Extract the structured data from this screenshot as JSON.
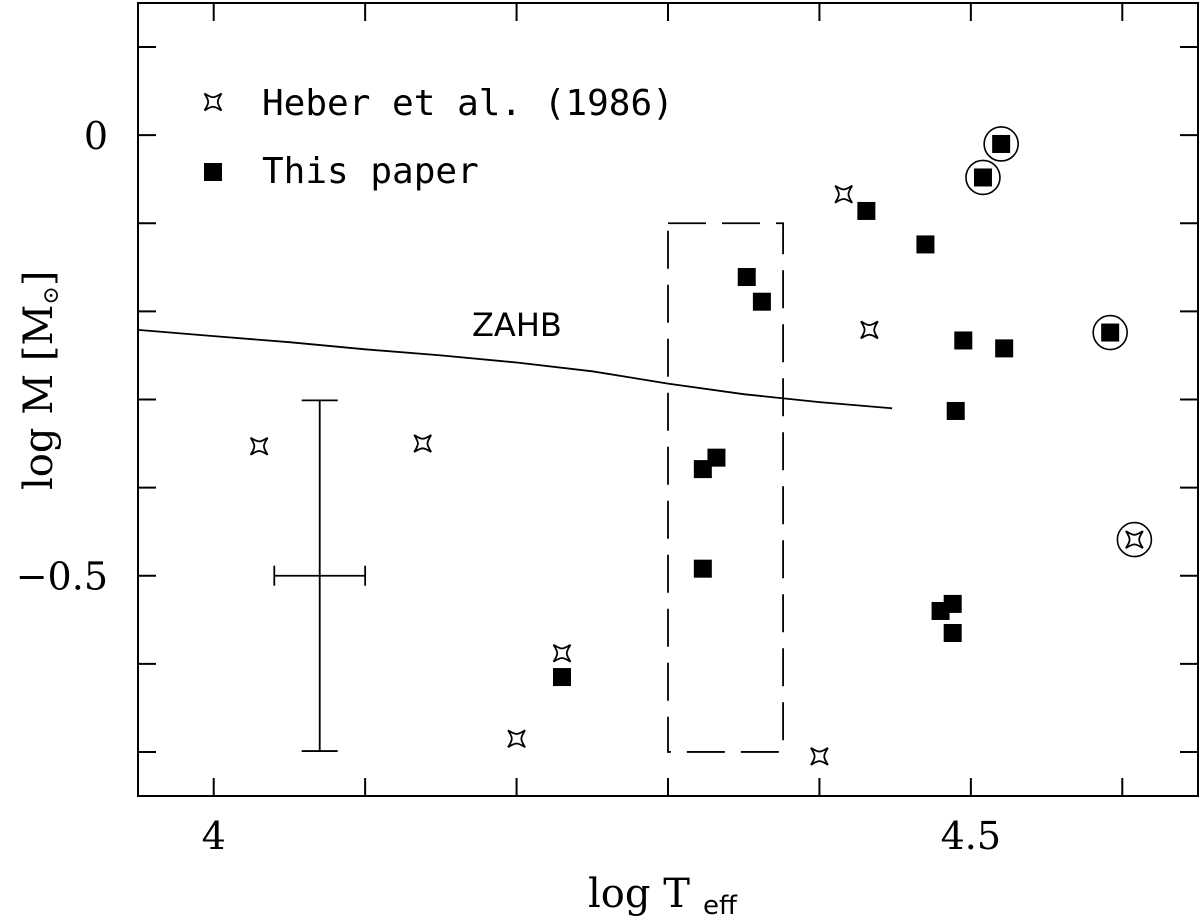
{
  "chart_data": {
    "type": "scatter",
    "xlabel_main": "log T",
    "xlabel_sub": "eff",
    "ylabel": "log M [M",
    "ylabel_sym": "⊙",
    "ylabel_close": "]",
    "xlim": [
      3.95,
      4.65
    ],
    "ylim": [
      -0.75,
      0.15
    ],
    "x_tick_labels": [
      {
        "value": 4.0,
        "label": "4"
      },
      {
        "value": 4.5,
        "label": "4.5"
      }
    ],
    "y_tick_labels": [
      {
        "value": 0.0,
        "label": "0"
      },
      {
        "value": -0.5,
        "label": "−0.5"
      }
    ],
    "x_minor_ticks": [
      4.0,
      4.1,
      4.2,
      4.3,
      4.4,
      4.5,
      4.6
    ],
    "y_minor_ticks": [
      0.1,
      0.0,
      -0.1,
      -0.2,
      -0.3,
      -0.4,
      -0.5,
      -0.6,
      -0.7
    ],
    "legend": {
      "position": "top-left",
      "entries": [
        {
          "symbol": "star",
          "label": "Heber et al. (1986)"
        },
        {
          "symbol": "square",
          "label": "This paper"
        }
      ]
    },
    "series": [
      {
        "name": "Heber et al. (1986)",
        "marker": "star",
        "points": [
          {
            "x": 4.03,
            "y": -0.353
          },
          {
            "x": 4.138,
            "y": -0.35
          },
          {
            "x": 4.2,
            "y": -0.685
          },
          {
            "x": 4.23,
            "y": -0.588
          },
          {
            "x": 4.4,
            "y": -0.705
          },
          {
            "x": 4.416,
            "y": -0.067
          },
          {
            "x": 4.433,
            "y": -0.221
          },
          {
            "x": 4.608,
            "y": -0.459,
            "circled": true
          }
        ]
      },
      {
        "name": "This paper",
        "marker": "square",
        "points": [
          {
            "x": 4.23,
            "y": -0.615
          },
          {
            "x": 4.323,
            "y": -0.379
          },
          {
            "x": 4.332,
            "y": -0.366
          },
          {
            "x": 4.323,
            "y": -0.492
          },
          {
            "x": 4.352,
            "y": -0.161
          },
          {
            "x": 4.362,
            "y": -0.189
          },
          {
            "x": 4.431,
            "y": -0.086
          },
          {
            "x": 4.47,
            "y": -0.124
          },
          {
            "x": 4.48,
            "y": -0.54
          },
          {
            "x": 4.488,
            "y": -0.532
          },
          {
            "x": 4.488,
            "y": -0.565
          },
          {
            "x": 4.49,
            "y": -0.313
          },
          {
            "x": 4.495,
            "y": -0.233
          },
          {
            "x": 4.508,
            "y": -0.048,
            "circled": true
          },
          {
            "x": 4.52,
            "y": -0.01,
            "circled": true
          },
          {
            "x": 4.522,
            "y": -0.242
          },
          {
            "x": 4.592,
            "y": -0.224,
            "circled": true
          }
        ]
      }
    ],
    "zahb_line": {
      "label": "ZAHB",
      "points": [
        [
          3.95,
          -0.221
        ],
        [
          4.0,
          -0.228
        ],
        [
          4.05,
          -0.235
        ],
        [
          4.1,
          -0.243
        ],
        [
          4.15,
          -0.25
        ],
        [
          4.2,
          -0.258
        ],
        [
          4.25,
          -0.268
        ],
        [
          4.3,
          -0.282
        ],
        [
          4.35,
          -0.294
        ],
        [
          4.4,
          -0.303
        ],
        [
          4.448,
          -0.31
        ]
      ]
    },
    "dashed_box": {
      "x": [
        4.3,
        4.376
      ],
      "y": [
        -0.7,
        -0.1
      ]
    },
    "error_bar": {
      "x": 4.07,
      "y": -0.5,
      "xerr": 0.03,
      "yerr": 0.199
    }
  }
}
